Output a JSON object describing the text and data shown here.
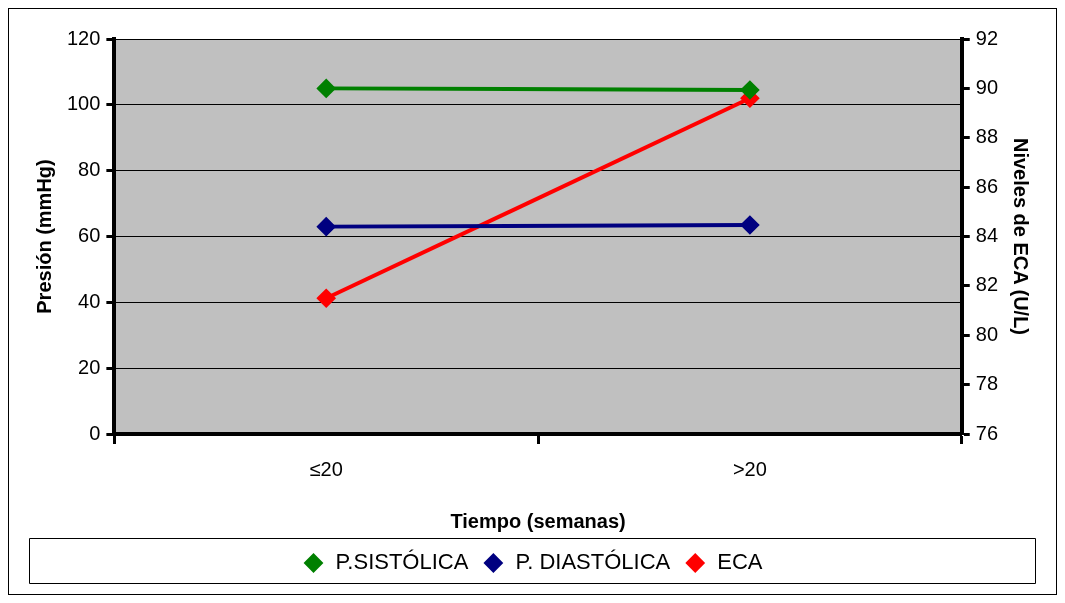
{
  "chart_data": {
    "type": "line",
    "xlabel": "Tiempo (semanas)",
    "ylabel": "Presión (mmHg)",
    "y2label": "Niveles de ECA (U/L)",
    "categories": [
      "≤20",
      ">20"
    ],
    "series": [
      {
        "name": "P.SISTÓLICA",
        "color": "#008000",
        "values": [
          105,
          104.5
        ]
      },
      {
        "name": "P. DIASTÓLICA",
        "color": "#000080",
        "values": [
          63,
          63.5
        ]
      },
      {
        "name": "ECA",
        "color": "#ff0000",
        "values": [
          81.5,
          89.6
        ],
        "axis": "y2"
      }
    ],
    "ylim": [
      0,
      120
    ],
    "yticks": [
      0,
      20,
      40,
      60,
      80,
      100,
      120
    ],
    "y2lim": [
      76,
      92
    ],
    "y2ticks": [
      76,
      78,
      80,
      82,
      84,
      86,
      88,
      90,
      92
    ],
    "grid": "y",
    "legend": "bottom",
    "marker": "diamond",
    "line_style": "solid"
  }
}
